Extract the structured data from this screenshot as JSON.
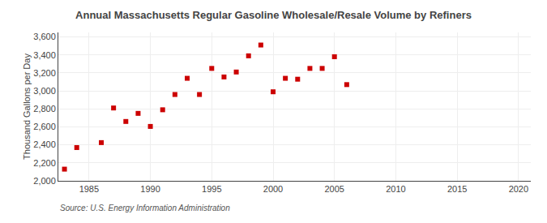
{
  "chart_data": {
    "type": "scatter",
    "title": "Annual Massachusetts Regular Gasoline Wholesale/Resale Volume by Refiners",
    "ylabel": "Thousand Gallons per Day",
    "source": "Source: U.S. Energy Information Administration",
    "x": [
      1983,
      1984,
      1986,
      1987,
      1988,
      1989,
      1990,
      1991,
      1992,
      1993,
      1994,
      1995,
      1996,
      1997,
      1998,
      1999,
      2000,
      2001,
      2002,
      2003,
      2004,
      2005,
      2006
    ],
    "values": [
      2130,
      2370,
      2425,
      2810,
      2660,
      2750,
      2605,
      2790,
      2960,
      3140,
      2960,
      3250,
      3155,
      3210,
      3390,
      3510,
      2990,
      3140,
      3130,
      3250,
      3250,
      3380,
      3070
    ],
    "color": "#cc0000",
    "marker": "square",
    "xlim": [
      1982.5,
      2021
    ],
    "ylim": [
      2000,
      3650
    ],
    "xticks": [
      1985,
      1990,
      1995,
      2000,
      2005,
      2010,
      2015,
      2020
    ],
    "yticks": [
      {
        "value": 2000,
        "label": "2,000"
      },
      {
        "value": 2200,
        "label": "2,200"
      },
      {
        "value": 2400,
        "label": "2,400"
      },
      {
        "value": 2600,
        "label": "2,600"
      },
      {
        "value": 2800,
        "label": "2,800"
      },
      {
        "value": 3000,
        "label": "3,000"
      },
      {
        "value": 3200,
        "label": "3,200"
      },
      {
        "value": 3400,
        "label": "3,400"
      },
      {
        "value": 3600,
        "label": "3,600"
      }
    ],
    "grid": true
  }
}
